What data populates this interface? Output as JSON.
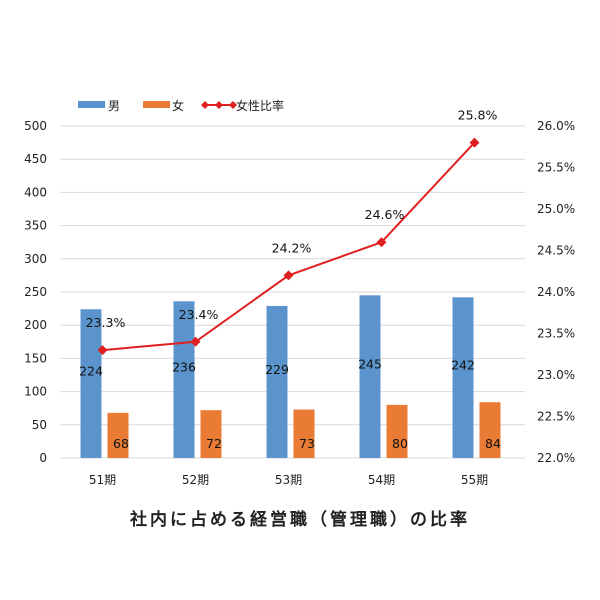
{
  "chart_data": {
    "type": "bar+line",
    "title": "社内に占める経営職（管理職）の比率",
    "categories": [
      "51期",
      "52期",
      "53期",
      "54期",
      "55期"
    ],
    "series": [
      {
        "name": "男",
        "type": "bar",
        "axis": "left",
        "color": "#5b94cc",
        "values": [
          224,
          236,
          229,
          245,
          242
        ]
      },
      {
        "name": "女",
        "type": "bar",
        "axis": "left",
        "color": "#e97b35",
        "values": [
          68,
          72,
          73,
          80,
          84
        ]
      },
      {
        "name": "女性比率",
        "type": "line",
        "axis": "right",
        "color": "#e02020",
        "marker": "diamond",
        "values": [
          23.3,
          23.4,
          24.2,
          24.6,
          25.8
        ],
        "labels": [
          "23.3%",
          "23.4%",
          "24.2%",
          "24.6%",
          "25.8%"
        ]
      }
    ],
    "left_axis": {
      "range": [
        0,
        500
      ],
      "ticks": [
        "0",
        "50",
        "100",
        "150",
        "200",
        "250",
        "300",
        "350",
        "400",
        "450",
        "500"
      ]
    },
    "right_axis": {
      "range": [
        22,
        26
      ],
      "ticks": [
        "22.0%",
        "22.5%",
        "23.0%",
        "23.5%",
        "24.0%",
        "24.5%",
        "25.0%",
        "25.5%",
        "26.0%"
      ]
    },
    "grid": true,
    "legend": "top-left"
  }
}
